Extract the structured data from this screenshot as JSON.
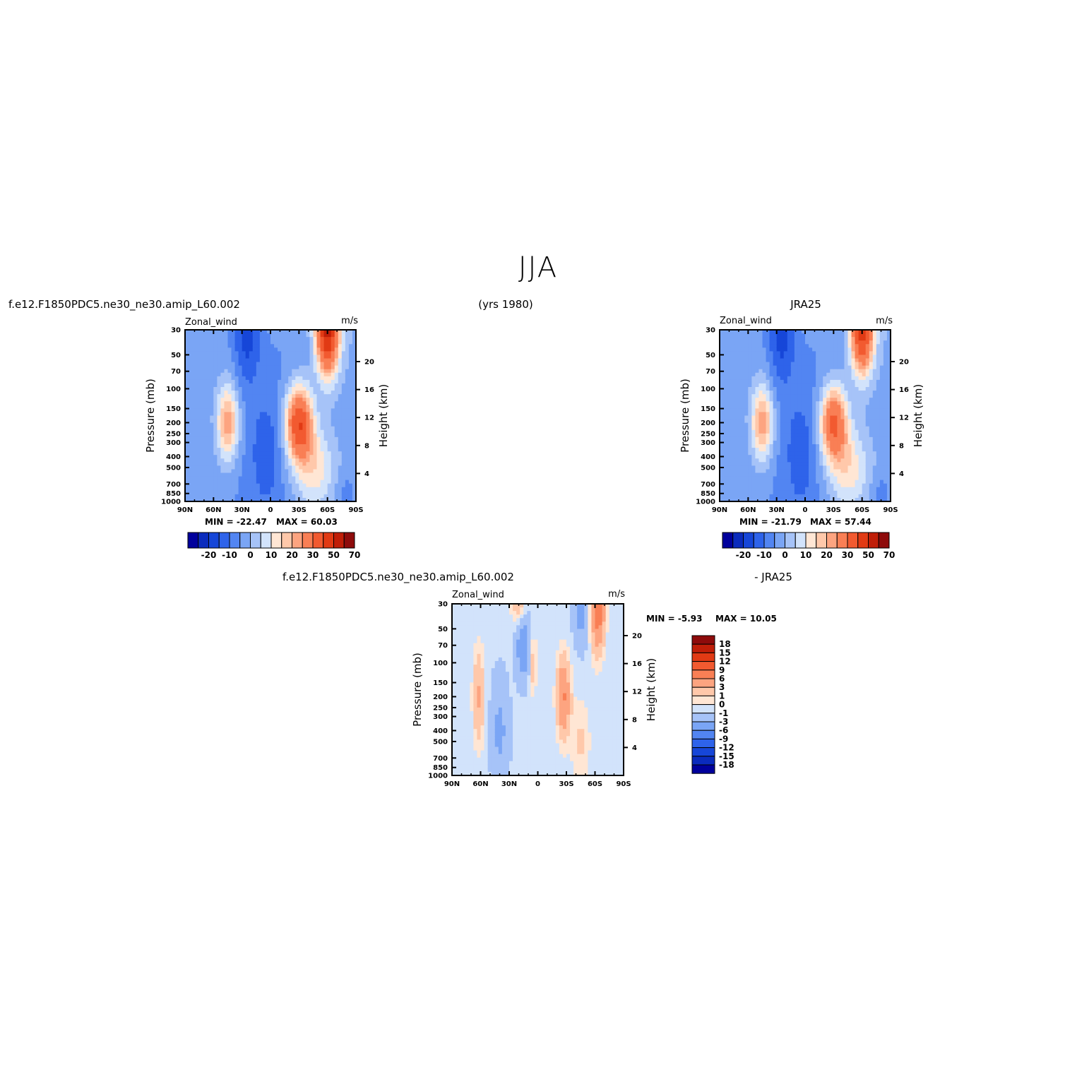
{
  "figure": {
    "title": "JJA",
    "years_label": "(yrs 1980)"
  },
  "panels": [
    {
      "id": "model",
      "case_label": "f.e12.F1850PDC5.ne30_ne30.amip_L60.002",
      "variable": "Zonal_wind",
      "units": "m/s",
      "min_label": "MIN = -22.47",
      "max_label": "MAX = 60.03"
    },
    {
      "id": "obs",
      "case_label": "JRA25",
      "variable": "Zonal_wind",
      "units": "m/s",
      "min_label": "MIN = -21.79",
      "max_label": "MAX = 57.44"
    },
    {
      "id": "diff",
      "case_label": "f.e12.F1850PDC5.ne30_ne30.amip_L60.002",
      "case_label_minus": "- JRA25",
      "variable": "Zonal_wind",
      "units": "m/s",
      "min_label": "MIN = -5.93",
      "max_label": "MAX = 10.05"
    }
  ],
  "axes": {
    "ylabel": "Pressure (mb)",
    "ylabel_right": "Height (km)",
    "x_ticks": [
      "90N",
      "60N",
      "30N",
      "0",
      "30S",
      "60S",
      "90S"
    ],
    "y_ticks": [
      "30",
      "50",
      "70",
      "100",
      "150",
      "200",
      "250",
      "300",
      "400",
      "500",
      "700",
      "850",
      "1000"
    ],
    "height_ticks": [
      "20",
      "16",
      "12",
      "8",
      "4"
    ]
  },
  "colorbars": {
    "main": {
      "labels": [
        "-20",
        "-10",
        "0",
        "10",
        "20",
        "30",
        "50",
        "70"
      ],
      "colors": [
        "#00009c",
        "#0a2bbd",
        "#1646d8",
        "#2e63ea",
        "#5285f2",
        "#7aa5f5",
        "#a6c3f8",
        "#d2e3fb",
        "#ffe6d4",
        "#ffc8aa",
        "#fda480",
        "#f97f55",
        "#f25a30",
        "#e13a14",
        "#c01e08",
        "#8e0b0b"
      ]
    },
    "diff": {
      "labels": [
        "18",
        "15",
        "12",
        "9",
        "6",
        "3",
        "1",
        "0",
        "-1",
        "-3",
        "-6",
        "-9",
        "-12",
        "-15",
        "-18"
      ],
      "colors": [
        "#8e0b0b",
        "#c01e08",
        "#e13a14",
        "#f25a30",
        "#f97f55",
        "#fda480",
        "#ffc8aa",
        "#ffe6d4",
        "#d2e3fb",
        "#a6c3f8",
        "#7aa5f5",
        "#5285f2",
        "#2e63ea",
        "#1646d8",
        "#0a2bbd",
        "#00009c"
      ]
    }
  },
  "chart_data": [
    {
      "type": "heatmap",
      "title": "f.e12.F1850PDC5.ne30_ne30.amip_L60.002",
      "variable": "Zonal_wind",
      "units": "m/s",
      "x": [
        90,
        60,
        30,
        0,
        -30,
        -60,
        -90
      ],
      "x_tick_labels": [
        "90N",
        "60N",
        "30N",
        "0",
        "30S",
        "60S",
        "90S"
      ],
      "y": [
        30,
        50,
        70,
        100,
        150,
        200,
        250,
        300,
        400,
        500,
        700,
        850,
        1000
      ],
      "ylim": [
        1000,
        30
      ],
      "yscale": "log",
      "ylabel": "Pressure (mb)",
      "ylabel_right": "Height (km)",
      "min": -22.47,
      "max": 60.03,
      "features": [
        {
          "lat": 30,
          "p": 30,
          "value": -20,
          "kind": "easterly jet"
        },
        {
          "lat": -30,
          "p": 200,
          "value": 50,
          "kind": "westerly jet"
        },
        {
          "lat": -60,
          "p": 30,
          "value": 60,
          "kind": "polar night jet"
        },
        {
          "lat": 45,
          "p": 200,
          "value": 20,
          "kind": "NH subtropical jet"
        }
      ],
      "grid": false
    },
    {
      "type": "heatmap",
      "title": "JRA25",
      "variable": "Zonal_wind",
      "units": "m/s",
      "x": [
        90,
        60,
        30,
        0,
        -30,
        -60,
        -90
      ],
      "x_tick_labels": [
        "90N",
        "60N",
        "30N",
        "0",
        "30S",
        "60S",
        "90S"
      ],
      "y": [
        30,
        50,
        70,
        100,
        150,
        200,
        250,
        300,
        400,
        500,
        700,
        850,
        1000
      ],
      "ylim": [
        1000,
        30
      ],
      "yscale": "log",
      "ylabel": "Pressure (mb)",
      "ylabel_right": "Height (km)",
      "min": -21.79,
      "max": 57.44,
      "features": [
        {
          "lat": 30,
          "p": 30,
          "value": -20,
          "kind": "easterly jet"
        },
        {
          "lat": -30,
          "p": 200,
          "value": 40,
          "kind": "westerly jet"
        },
        {
          "lat": -60,
          "p": 30,
          "value": 57,
          "kind": "polar night jet"
        },
        {
          "lat": 45,
          "p": 200,
          "value": 20,
          "kind": "NH subtropical jet"
        }
      ],
      "grid": false
    },
    {
      "type": "heatmap",
      "title": "f.e12.F1850PDC5.ne30_ne30.amip_L60.002 - JRA25",
      "variable": "Zonal_wind",
      "units": "m/s",
      "x": [
        90,
        60,
        30,
        0,
        -30,
        -60,
        -90
      ],
      "x_tick_labels": [
        "90N",
        "60N",
        "30N",
        "0",
        "30S",
        "60S",
        "90S"
      ],
      "y": [
        30,
        50,
        70,
        100,
        150,
        200,
        250,
        300,
        400,
        500,
        700,
        850,
        1000
      ],
      "ylim": [
        1000,
        30
      ],
      "yscale": "log",
      "ylabel": "Pressure (mb)",
      "ylabel_right": "Height (km)",
      "min": -5.93,
      "max": 10.05,
      "features": [
        {
          "lat": -60,
          "p": 30,
          "value": 10,
          "kind": "positive"
        },
        {
          "lat": -27,
          "p": 200,
          "value": 6,
          "kind": "positive"
        },
        {
          "lat": 62,
          "p": 200,
          "value": 3,
          "kind": "positive"
        },
        {
          "lat": 15,
          "p": 70,
          "value": -5,
          "kind": "negative"
        },
        {
          "lat": -45,
          "p": 30,
          "value": -5,
          "kind": "negative"
        }
      ],
      "grid": false
    }
  ]
}
